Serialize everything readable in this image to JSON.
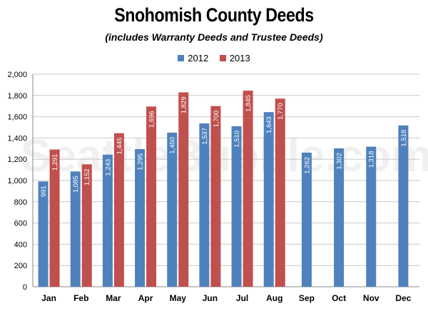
{
  "chart_data": {
    "type": "bar",
    "title": "Snohomish County Deeds",
    "subtitle": "(includes Warranty Deeds and Trustee Deeds)",
    "categories": [
      "Jan",
      "Feb",
      "Mar",
      "Apr",
      "May",
      "Jun",
      "Jul",
      "Aug",
      "Sep",
      "Oct",
      "Nov",
      "Dec"
    ],
    "series": [
      {
        "name": "2012",
        "color": "#4f81bd",
        "values": [
          991,
          1085,
          1243,
          1295,
          1450,
          1537,
          1510,
          1643,
          1262,
          1302,
          1318,
          1518
        ],
        "labels": [
          "991",
          "1,085",
          "1,243",
          "1,295",
          "1,450",
          "1,537",
          "1,510",
          "1,643",
          "1,262",
          "1,302",
          "1,318",
          "1,518"
        ]
      },
      {
        "name": "2013",
        "color": "#c0504d",
        "values": [
          1291,
          1152,
          1445,
          1696,
          1829,
          1700,
          1845,
          1770,
          null,
          null,
          null,
          null
        ],
        "labels": [
          "1,291",
          "1,152",
          "1,445",
          "1,696",
          "1,829",
          "1,700",
          "1,845",
          "1,770",
          null,
          null,
          null,
          null
        ]
      }
    ],
    "ylim": [
      0,
      2000
    ],
    "yticks": [
      0,
      200,
      400,
      600,
      800,
      1000,
      1200,
      1400,
      1600,
      1800,
      2000
    ],
    "ytick_labels": [
      "0",
      "200",
      "400",
      "600",
      "800",
      "1,000",
      "1,200",
      "1,400",
      "1,600",
      "1,800",
      "2,000"
    ],
    "grid": true,
    "legend_position": "top-center",
    "xlabel": "",
    "ylabel": "",
    "watermark": "SeattleBubble.com"
  }
}
